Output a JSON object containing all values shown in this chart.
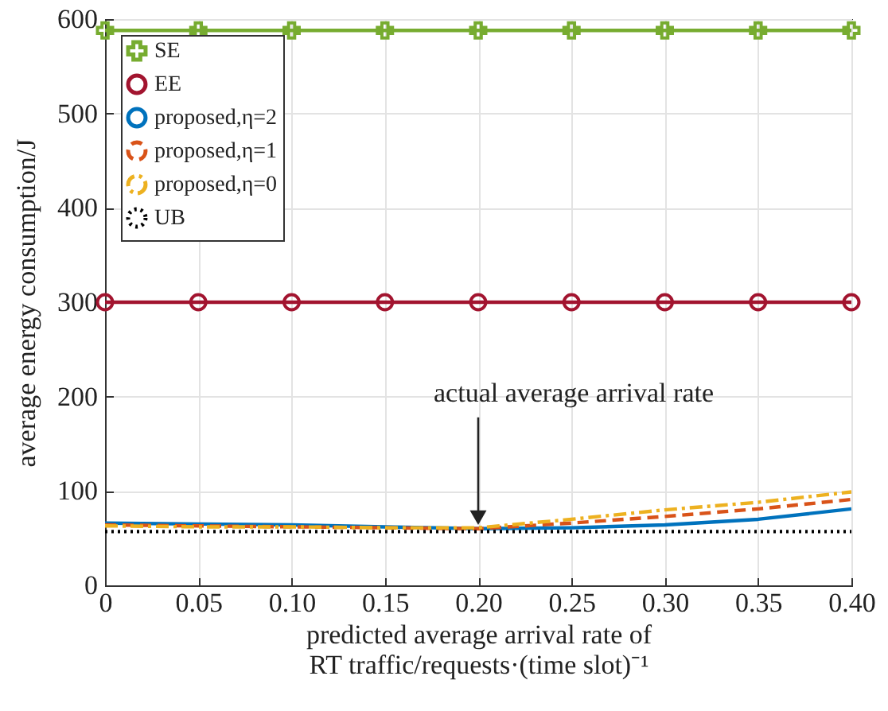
{
  "chart_data": {
    "type": "line",
    "xlabel": "predicted average arrival rate of\nRT traffic/requests·(time slot)⁻¹",
    "ylabel": "average energy consumption/J",
    "x": [
      0,
      0.05,
      0.1,
      0.15,
      0.2,
      0.25,
      0.3,
      0.35,
      0.4
    ],
    "xlim": [
      0,
      0.4
    ],
    "xticks": [
      0,
      0.05,
      {
        "value": 0.1,
        "label": "0.10"
      },
      0.15,
      {
        "value": 0.2,
        "label": "0.20"
      },
      0.25,
      {
        "value": 0.3,
        "label": "0.30"
      },
      0.35,
      {
        "value": 0.4,
        "label": "0.40"
      }
    ],
    "ylim": [
      0,
      600
    ],
    "yticks": [
      0,
      100,
      200,
      300,
      400,
      500,
      600
    ],
    "grid": true,
    "legend": "top left",
    "series": [
      {
        "name": "SE",
        "color": "#77ac30",
        "marker": "cross",
        "line_style": "solid",
        "values": [
          588,
          588,
          588,
          588,
          588,
          588,
          588,
          588,
          588
        ]
      },
      {
        "name": "EE",
        "color": "#a2142f",
        "marker": "circle",
        "line_style": "solid",
        "values": [
          300,
          300,
          300,
          300,
          300,
          300,
          300,
          300,
          300
        ]
      },
      {
        "name": "proposed,η=2",
        "color": "#0072bd",
        "line_style": "solid",
        "values": [
          66,
          65,
          64,
          62,
          60,
          61,
          64,
          70,
          81
        ]
      },
      {
        "name": "proposed,η=1",
        "color": "#d95319",
        "line_style": "dashed",
        "values": [
          64,
          63,
          62,
          61,
          60,
          66,
          73,
          81,
          91
        ]
      },
      {
        "name": "proposed,η=0",
        "color": "#edb120",
        "line_style": "dashdot",
        "values": [
          63,
          62,
          62,
          61,
          61,
          70,
          80,
          88,
          99
        ]
      },
      {
        "name": "UB",
        "color": "#000000",
        "line_style": "dotted",
        "values": [
          57,
          57,
          57,
          57,
          57,
          57,
          57,
          57,
          57
        ]
      }
    ],
    "annotations": [
      {
        "text": "actual average arrival rate",
        "x": 0.2,
        "y": 60
      }
    ]
  }
}
